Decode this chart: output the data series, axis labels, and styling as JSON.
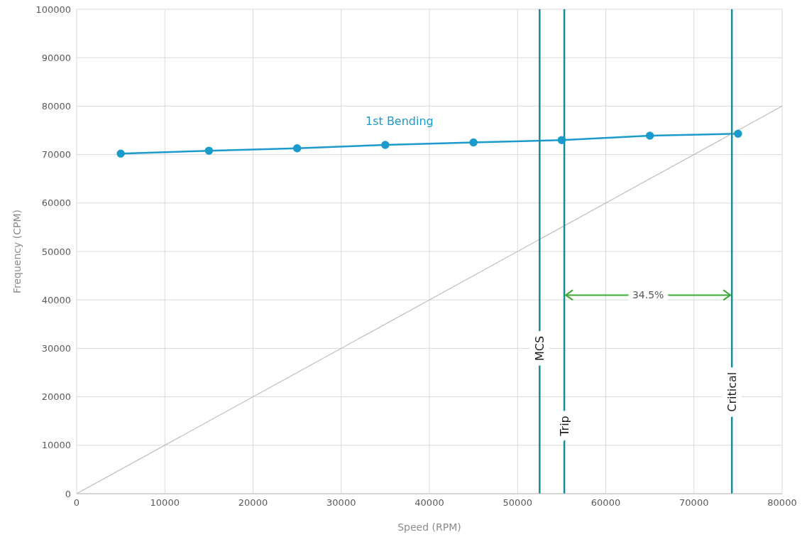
{
  "chart_data": {
    "type": "line",
    "xlabel": "Speed (RPM)",
    "ylabel": "Frequency (CPM)",
    "series": [
      {
        "name": "1st Bending",
        "color": "#1b9bcb",
        "marker": "circle",
        "x": [
          5000,
          15000,
          25000,
          35000,
          45000,
          55000,
          65000,
          75000
        ],
        "values": [
          70200,
          70800,
          71300,
          72000,
          72500,
          73000,
          73900,
          74300
        ]
      },
      {
        "color": "#bfbfbf",
        "marker": "none",
        "x": [
          0,
          80000
        ],
        "values": [
          0,
          80000
        ]
      }
    ],
    "xlim": [
      0,
      80000
    ],
    "xticks": [
      0,
      10000,
      20000,
      30000,
      40000,
      50000,
      60000,
      70000,
      80000
    ],
    "ylim": [
      0,
      100000
    ],
    "yticks": [
      0,
      10000,
      20000,
      30000,
      40000,
      50000,
      60000,
      70000,
      80000,
      90000,
      100000
    ],
    "ref_lines": [
      {
        "axis": "x",
        "value": 52500,
        "label": "MCS",
        "color": "#1a8a9a"
      },
      {
        "axis": "x",
        "value": 55300,
        "label": "Trip",
        "color": "#1a8a9a"
      },
      {
        "axis": "x",
        "value": 74300,
        "label": "Critical",
        "color": "#1a8a9a"
      }
    ],
    "annotations": [
      "34.5%"
    ],
    "grid": true,
    "legend": false
  }
}
